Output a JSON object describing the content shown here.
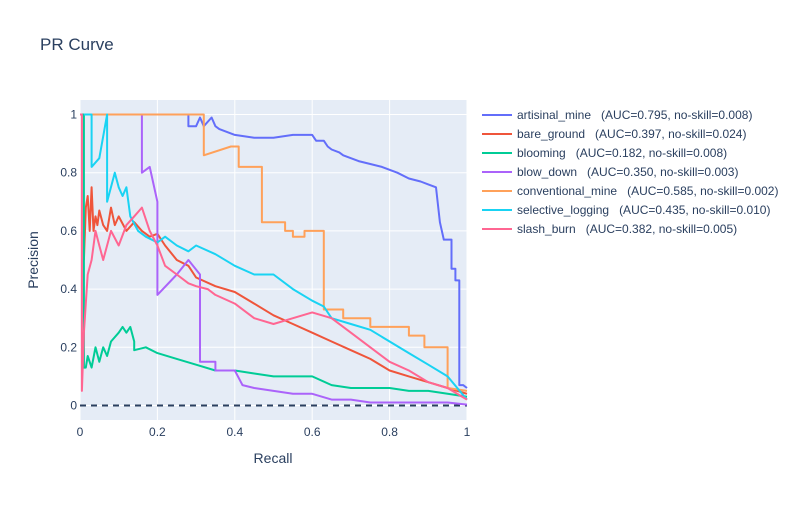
{
  "chart_data": {
    "type": "line",
    "title": "PR Curve",
    "xlabel": "Recall",
    "ylabel": "Precision",
    "xlim": [
      0,
      1
    ],
    "ylim": [
      -0.05,
      1.05
    ],
    "xticks": [
      0,
      0.2,
      0.4,
      0.6,
      0.8,
      1
    ],
    "xtick_labels": [
      "0",
      "0.2",
      "0.4",
      "0.6",
      "0.8",
      "1"
    ],
    "yticks": [
      0,
      0.2,
      0.4,
      0.6,
      0.8,
      1
    ],
    "ytick_labels": [
      "0",
      "0.2",
      "0.4",
      "0.6",
      "0.8",
      "1"
    ],
    "grid": true,
    "legend_position": "right",
    "baseline": {
      "y": 0,
      "style": "dashed",
      "color": "#2a3f5f"
    },
    "series": [
      {
        "name": "artisinal_mine",
        "legend_label": "artisinal_mine   (AUC=0.795, no-skill=0.008)",
        "color": "#636efa",
        "x": [
          0.27,
          0.28,
          0.28,
          0.3,
          0.31,
          0.32,
          0.34,
          0.35,
          0.36,
          0.4,
          0.45,
          0.5,
          0.55,
          0.6,
          0.61,
          0.63,
          0.64,
          0.65,
          0.67,
          0.68,
          0.7,
          0.72,
          0.75,
          0.78,
          0.8,
          0.82,
          0.85,
          0.88,
          0.9,
          0.92,
          0.93,
          0.94,
          0.95,
          0.96,
          0.96,
          0.97,
          0.97,
          0.98,
          0.98,
          0.99,
          1.0
        ],
        "y": [
          1.0,
          1.0,
          0.96,
          0.96,
          0.99,
          0.96,
          0.99,
          0.96,
          0.95,
          0.93,
          0.92,
          0.92,
          0.93,
          0.93,
          0.91,
          0.91,
          0.89,
          0.88,
          0.87,
          0.86,
          0.85,
          0.84,
          0.83,
          0.82,
          0.81,
          0.8,
          0.78,
          0.77,
          0.76,
          0.75,
          0.63,
          0.57,
          0.57,
          0.57,
          0.47,
          0.47,
          0.43,
          0.43,
          0.07,
          0.07,
          0.06
        ]
      },
      {
        "name": "bare_ground",
        "legend_label": "bare_ground   (AUC=0.397, no-skill=0.024)",
        "color": "#ef553b",
        "x": [
          0.01,
          0.015,
          0.02,
          0.025,
          0.03,
          0.035,
          0.04,
          0.045,
          0.05,
          0.06,
          0.07,
          0.08,
          0.09,
          0.1,
          0.12,
          0.14,
          0.16,
          0.18,
          0.2,
          0.22,
          0.25,
          0.28,
          0.3,
          0.35,
          0.4,
          0.45,
          0.5,
          0.55,
          0.6,
          0.65,
          0.7,
          0.75,
          0.8,
          0.85,
          0.9,
          0.95,
          1.0
        ],
        "y": [
          0.5,
          0.68,
          0.72,
          0.6,
          0.75,
          0.6,
          0.65,
          0.62,
          0.67,
          0.62,
          0.6,
          0.68,
          0.62,
          0.65,
          0.6,
          0.63,
          0.6,
          0.58,
          0.59,
          0.55,
          0.5,
          0.48,
          0.44,
          0.41,
          0.39,
          0.35,
          0.31,
          0.28,
          0.25,
          0.22,
          0.19,
          0.16,
          0.12,
          0.1,
          0.08,
          0.06,
          0.04
        ]
      },
      {
        "name": "blooming",
        "legend_label": "blooming   (AUC=0.182, no-skill=0.008)",
        "color": "#00cc96",
        "x": [
          0.005,
          0.01,
          0.01,
          0.015,
          0.02,
          0.03,
          0.04,
          0.05,
          0.06,
          0.07,
          0.08,
          0.1,
          0.11,
          0.12,
          0.13,
          0.14,
          0.14,
          0.17,
          0.2,
          0.25,
          0.3,
          0.35,
          0.4,
          0.45,
          0.5,
          0.55,
          0.6,
          0.65,
          0.7,
          0.75,
          0.8,
          0.85,
          0.9,
          0.95,
          1.0
        ],
        "y": [
          1.0,
          1.0,
          0.13,
          0.13,
          0.17,
          0.13,
          0.2,
          0.15,
          0.2,
          0.17,
          0.22,
          0.25,
          0.27,
          0.25,
          0.27,
          0.22,
          0.19,
          0.2,
          0.18,
          0.16,
          0.14,
          0.12,
          0.12,
          0.11,
          0.1,
          0.1,
          0.1,
          0.07,
          0.06,
          0.06,
          0.06,
          0.05,
          0.05,
          0.04,
          0.03
        ]
      },
      {
        "name": "blow_down",
        "legend_label": "blow_down   (AUC=0.350, no-skill=0.003)",
        "color": "#ab63fa",
        "x": [
          0.16,
          0.16,
          0.18,
          0.2,
          0.2,
          0.25,
          0.28,
          0.31,
          0.31,
          0.35,
          0.35,
          0.4,
          0.42,
          0.45,
          0.5,
          0.55,
          0.6,
          0.65,
          0.7,
          0.75,
          0.8,
          0.85,
          0.9,
          0.95,
          1.0
        ],
        "y": [
          1.0,
          0.8,
          0.82,
          0.7,
          0.38,
          0.45,
          0.5,
          0.45,
          0.15,
          0.15,
          0.12,
          0.12,
          0.07,
          0.06,
          0.05,
          0.04,
          0.04,
          0.02,
          0.02,
          0.01,
          0.01,
          0.01,
          0.01,
          0.01,
          0.003
        ]
      },
      {
        "name": "conventional_mine",
        "legend_label": "conventional_mine   (AUC=0.585, no-skill=0.002)",
        "color": "#ffa15a",
        "x": [
          0.03,
          0.32,
          0.32,
          0.39,
          0.41,
          0.41,
          0.47,
          0.47,
          0.53,
          0.53,
          0.55,
          0.55,
          0.58,
          0.58,
          0.63,
          0.63,
          0.68,
          0.68,
          0.75,
          0.75,
          0.85,
          0.85,
          0.89,
          0.89,
          0.95,
          0.95,
          1.0
        ],
        "y": [
          1.0,
          1.0,
          0.86,
          0.89,
          0.89,
          0.82,
          0.82,
          0.63,
          0.63,
          0.6,
          0.6,
          0.58,
          0.58,
          0.6,
          0.6,
          0.33,
          0.33,
          0.3,
          0.3,
          0.27,
          0.27,
          0.24,
          0.24,
          0.2,
          0.2,
          0.06,
          0.05
        ]
      },
      {
        "name": "selective_logging",
        "legend_label": "selective_logging   (AUC=0.435, no-skill=0.010)",
        "color": "#19d3f3",
        "x": [
          0.01,
          0.03,
          0.03,
          0.05,
          0.07,
          0.07,
          0.09,
          0.1,
          0.11,
          0.12,
          0.13,
          0.15,
          0.17,
          0.2,
          0.22,
          0.25,
          0.28,
          0.3,
          0.35,
          0.4,
          0.45,
          0.5,
          0.55,
          0.6,
          0.63,
          0.65,
          0.7,
          0.75,
          0.8,
          0.85,
          0.9,
          0.95,
          1.0
        ],
        "y": [
          1.0,
          1.0,
          0.82,
          0.85,
          1.0,
          0.7,
          0.8,
          0.75,
          0.72,
          0.75,
          0.65,
          0.6,
          0.58,
          0.56,
          0.58,
          0.55,
          0.53,
          0.55,
          0.52,
          0.48,
          0.45,
          0.45,
          0.4,
          0.36,
          0.34,
          0.3,
          0.28,
          0.26,
          0.22,
          0.18,
          0.14,
          0.1,
          0.02
        ]
      },
      {
        "name": "slash_burn",
        "legend_label": "slash_burn   (AUC=0.382, no-skill=0.005)",
        "color": "#ff6692",
        "x": [
          0.0,
          0.005,
          0.005,
          0.01,
          0.02,
          0.03,
          0.04,
          0.05,
          0.06,
          0.08,
          0.1,
          0.12,
          0.14,
          0.16,
          0.18,
          0.2,
          0.22,
          0.25,
          0.28,
          0.3,
          0.33,
          0.35,
          0.4,
          0.45,
          0.5,
          0.55,
          0.6,
          0.65,
          0.7,
          0.75,
          0.8,
          0.85,
          0.9,
          0.95,
          1.0
        ],
        "y": [
          1.0,
          1.0,
          0.05,
          0.25,
          0.45,
          0.5,
          0.6,
          0.55,
          0.5,
          0.6,
          0.55,
          0.62,
          0.65,
          0.68,
          0.6,
          0.55,
          0.48,
          0.45,
          0.42,
          0.41,
          0.4,
          0.38,
          0.35,
          0.3,
          0.28,
          0.3,
          0.32,
          0.3,
          0.25,
          0.2,
          0.15,
          0.12,
          0.08,
          0.06,
          0.02
        ]
      }
    ]
  }
}
